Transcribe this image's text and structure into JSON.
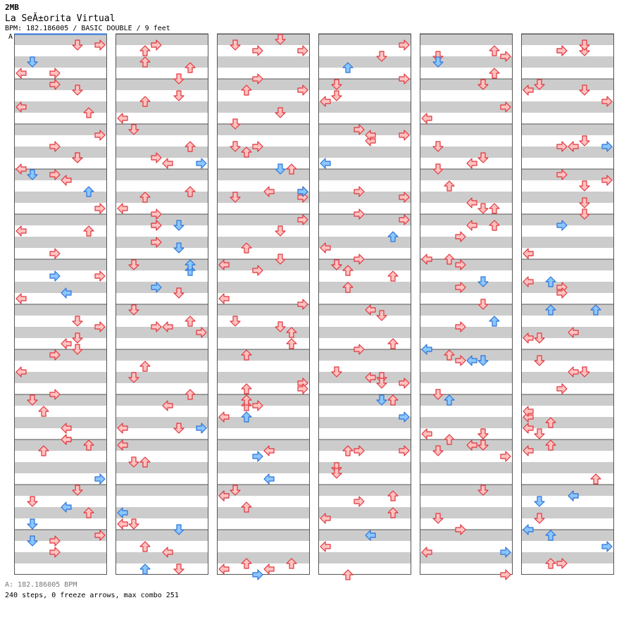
{
  "header": {
    "mix": "2MB",
    "title": "La SeÃ±orita Virtual",
    "meta": "BPM: 182.186005 / BASIC DOUBLE / 9 feet",
    "bpm_marker": "A"
  },
  "footer": {
    "bpm_line": "A: 182.186005 BPM",
    "stats": "240 steps, 0 freeze arrows, max combo 251"
  },
  "colors": {
    "band_gray": "#cccccc",
    "border": "#555555",
    "red_fill": "#ffc2c2",
    "red_stroke": "#e0343a",
    "blue_fill": "#8cc6ff",
    "blue_stroke": "#2a73d6",
    "marker_line": "#2a73d6"
  },
  "chart_data": {
    "type": "step-chart",
    "mode": "BASIC DOUBLE",
    "difficulty_feet": 9,
    "bpm": 182.186005,
    "total_measures": 72,
    "columns": 6,
    "measures_per_column": 12,
    "lane_order": [
      "P1-left",
      "P1-down",
      "P1-up",
      "P1-right",
      "P2-left",
      "P2-down",
      "P2-up",
      "P2-right"
    ],
    "row_unit": "1/8 note from chart start (measure = 8 rows)",
    "notes": {
      "red": [
        [
          0,
          0,
          []
        ],
        [
          1,
          0,
          []
        ],
        [
          2,
          0,
          []
        ],
        [
          3,
          0,
          []
        ],
        [
          4,
          0,
          []
        ],
        [
          5,
          0,
          []
        ],
        [
          6,
          0,
          [
            [
              2,
              0
            ],
            [
              3,
              0
            ]
          ]
        ],
        [
          6,
          1,
          [
            [
              3,
              0
            ]
          ]
        ],
        [
          6,
          2,
          [
            [
              4,
              0
            ]
          ]
        ],
        [
          6,
          3,
          [
            [
              4,
              0
            ]
          ]
        ],
        [
          7,
          0,
          [
            [
              3,
              0
            ]
          ]
        ],
        [
          7,
          1,
          [
            [
              3,
              0
            ]
          ]
        ],
        [
          7,
          2,
          [
            [
              4,
              0
            ]
          ]
        ],
        [
          7,
          3,
          [
            [
              5,
              0
            ]
          ]
        ],
        [
          8,
          0,
          [
            [
              4,
              0
            ]
          ]
        ],
        [
          8,
          1,
          [
            [
              4,
              0
            ]
          ]
        ],
        [
          8,
          2,
          [
            [
              3,
              0
            ]
          ]
        ],
        [
          8,
          3,
          [
            [
              1,
              0
            ]
          ]
        ],
        [
          9,
          0,
          [
            [
              2,
              0
            ]
          ]
        ],
        [
          9,
          1,
          [
            [
              3,
              0
            ]
          ]
        ],
        [
          9,
          2,
          [
            [
              2,
              0
            ]
          ]
        ],
        [
          9,
          3,
          [
            [
              0,
              0
            ]
          ]
        ],
        [
          10,
          0,
          [
            [
              2,
              0
            ]
          ]
        ],
        [
          10,
          1,
          [
            [
              3,
              0
            ]
          ]
        ],
        [
          10,
          2,
          [
            [
              4,
              0
            ]
          ]
        ],
        [
          10,
          3,
          [
            [
              5,
              0
            ]
          ]
        ],
        [
          11,
          0,
          [
            [
              6,
              0
            ]
          ]
        ],
        [
          11,
          1,
          [
            [
              7,
              0
            ]
          ]
        ],
        [
          11,
          2,
          [
            [
              6,
              0
            ]
          ]
        ],
        [
          11,
          3,
          [
            [
              5,
              0
            ]
          ]
        ]
      ]
    }
  }
}
